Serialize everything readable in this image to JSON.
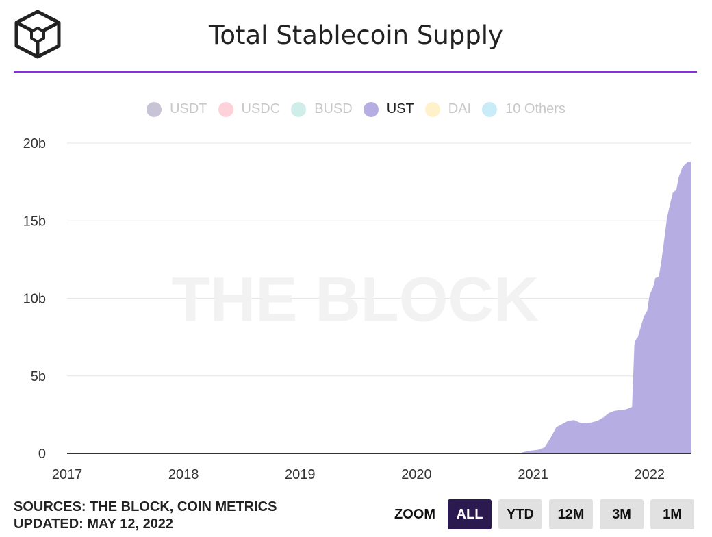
{
  "title": "Total Stablecoin Supply",
  "colors": {
    "accent": "#8a2be2",
    "series_fill": "#b6aee2",
    "zoom_active": "#2b1a4f"
  },
  "watermark": "THE BLOCK",
  "legend": [
    {
      "label": "USDT",
      "color": "#c9c3d6",
      "active": false
    },
    {
      "label": "USDC",
      "color": "#ffd1da",
      "active": false
    },
    {
      "label": "BUSD",
      "color": "#cfeeea",
      "active": false
    },
    {
      "label": "UST",
      "color": "#b6aee2",
      "active": true
    },
    {
      "label": "DAI",
      "color": "#fff1c9",
      "active": false
    },
    {
      "label": "10 Others",
      "color": "#c9ecf8",
      "active": false
    }
  ],
  "sources": "SOURCES: THE BLOCK, COIN METRICS",
  "updated": "UPDATED: MAY 12, 2022",
  "zoom": {
    "label": "ZOOM",
    "buttons": [
      {
        "label": "ALL",
        "active": true
      },
      {
        "label": "YTD",
        "active": false
      },
      {
        "label": "12M",
        "active": false
      },
      {
        "label": "3M",
        "active": false
      },
      {
        "label": "1M",
        "active": false
      }
    ]
  },
  "chart_data": {
    "type": "area",
    "title": "Total Stablecoin Supply",
    "xlim": [
      2017.0,
      2022.36
    ],
    "ylim": [
      0,
      20
    ],
    "y_unit": "b",
    "yticks": [
      0,
      5,
      10,
      15,
      20
    ],
    "ytick_labels": [
      "0",
      "5b",
      "10b",
      "15b",
      "20b"
    ],
    "xticks": [
      2017,
      2018,
      2019,
      2020,
      2021,
      2022
    ],
    "xtick_labels": [
      "2017",
      "2018",
      "2019",
      "2020",
      "2021",
      "2022"
    ],
    "grid": true,
    "legend_position": "top-center",
    "series": [
      {
        "name": "UST",
        "x": [
          2017.0,
          2020.7,
          2020.9,
          2020.95,
          2021.05,
          2021.1,
          2021.15,
          2021.2,
          2021.25,
          2021.3,
          2021.35,
          2021.4,
          2021.45,
          2021.5,
          2021.55,
          2021.6,
          2021.65,
          2021.7,
          2021.75,
          2021.8,
          2021.85,
          2021.87,
          2021.88,
          2021.9,
          2021.95,
          2021.98,
          2022.0,
          2022.03,
          2022.05,
          2022.08,
          2022.1,
          2022.13,
          2022.15,
          2022.18,
          2022.2,
          2022.23,
          2022.25,
          2022.28,
          2022.3,
          2022.33,
          2022.35,
          2022.36
        ],
        "y": [
          0,
          0,
          0.05,
          0.15,
          0.25,
          0.4,
          1.0,
          1.7,
          1.9,
          2.1,
          2.15,
          2.0,
          1.95,
          2.0,
          2.1,
          2.3,
          2.6,
          2.75,
          2.8,
          2.85,
          3.0,
          7.0,
          7.3,
          7.5,
          8.8,
          9.2,
          10.2,
          10.7,
          11.3,
          11.4,
          12.3,
          14.0,
          15.2,
          16.2,
          16.8,
          17.0,
          17.8,
          18.4,
          18.6,
          18.8,
          18.8,
          18.7
        ]
      }
    ]
  }
}
